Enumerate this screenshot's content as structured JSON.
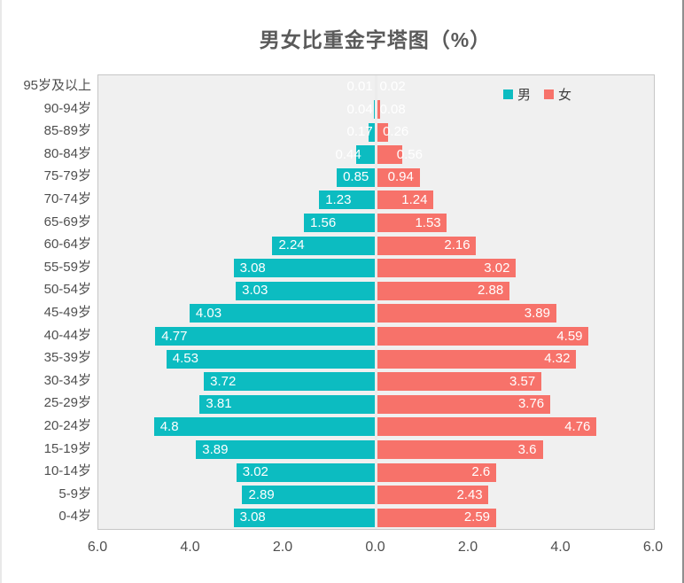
{
  "title": "男女比重金字塔图（%）",
  "legend": {
    "male": "男",
    "female": "女"
  },
  "colors": {
    "male": "#0cbcc1",
    "female": "#f7726a",
    "plot_bg": "#f0f0f0",
    "plot_border": "#c6c6c6",
    "center_line": "#ececec",
    "axis_text": "#4f4f4f",
    "title_text": "#5a5a5a",
    "bar_label": "#ffffff"
  },
  "chart_data": {
    "type": "bar",
    "subtype": "population-pyramid",
    "title": "男女比重金字塔图（%）",
    "unit": "%",
    "categories": [
      "95岁及以上",
      "90-94岁",
      "85-89岁",
      "80-84岁",
      "75-79岁",
      "70-74岁",
      "65-69岁",
      "60-64岁",
      "55-59岁",
      "50-54岁",
      "45-49岁",
      "40-44岁",
      "35-39岁",
      "30-34岁",
      "25-29岁",
      "20-24岁",
      "15-19岁",
      "10-14岁",
      "5-9岁",
      "0-4岁"
    ],
    "series": [
      {
        "name": "男",
        "side": "left",
        "color": "#0cbcc1",
        "values": [
          0.01,
          0.04,
          0.17,
          0.44,
          0.85,
          1.23,
          1.56,
          2.24,
          3.08,
          3.03,
          4.03,
          4.77,
          4.53,
          3.72,
          3.81,
          4.8,
          3.89,
          3.02,
          2.89,
          3.08
        ]
      },
      {
        "name": "女",
        "side": "right",
        "color": "#f7726a",
        "values": [
          0.02,
          0.08,
          0.26,
          0.56,
          0.94,
          1.24,
          1.53,
          2.16,
          3.02,
          2.88,
          3.89,
          4.59,
          4.32,
          3.57,
          3.76,
          4.76,
          3.6,
          2.6,
          2.43,
          2.59
        ]
      }
    ],
    "x_ticks": [
      "6.0",
      "4.0",
      "2.0",
      "0.0",
      "2.0",
      "4.0",
      "6.0"
    ],
    "xlim": [
      0,
      6
    ],
    "grid": false,
    "legend_position": "top-right",
    "value_label_style": "white inside-end"
  }
}
